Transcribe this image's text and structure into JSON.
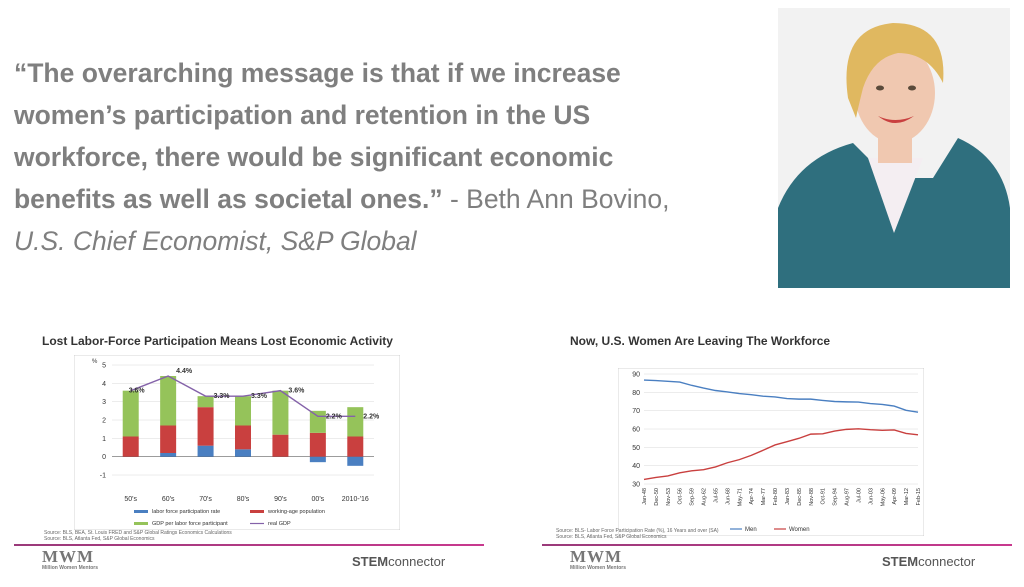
{
  "quote": {
    "bold_text": "“The overarching message is that if we increase women’s participation and retention in the US workforce, there would be significant economic benefits as well as societal ones.”",
    "attribution": " - Beth Ann Bovino, ",
    "role": "U.S. Chief Economist, S&P Global"
  },
  "photo": {
    "description": "portrait",
    "colors": {
      "background": "#f2f2f2",
      "jacket": "#2f6f7e",
      "shirt": "#f4eef2",
      "hair": "#e0b860",
      "skin": "#f0c8b0"
    }
  },
  "left_slide": {
    "title": "Lost Labor-Force Participation Means Lost Economic Activity",
    "source_lines": [
      "Source: BLS, BEA, St. Louis FRED and S&P Global Ratings Economics Calculations",
      "Source: BLS, Atlanta Fed, S&P Global Economics"
    ],
    "logo_text": "MWM",
    "logo_sub": "Million Women Mentors",
    "brand_bold": "STEM",
    "brand_rest": "connector"
  },
  "right_slide": {
    "title": "Now, U.S. Women Are Leaving The Workforce",
    "source_lines": [
      "Source: BLS- Labor Force Participation Rate (%), 16 Years and over (SA)",
      "Source: BLS, Atlanta Fed, S&P Global Economics"
    ],
    "logo_text": "MWM",
    "logo_sub": "Million Women Mentors",
    "brand_bold": "STEM",
    "brand_rest": "connector"
  },
  "chart_data": [
    {
      "type": "bar",
      "stacked": true,
      "ylabel": "%",
      "ylim": [
        -1,
        5
      ],
      "yticks": [
        "-1",
        "0",
        "1",
        "2",
        "3",
        "4",
        "5"
      ],
      "categories": [
        "50's",
        "60's",
        "70's",
        "80's",
        "90's",
        "00's",
        "2010-'16"
      ],
      "series": [
        {
          "name": "labor force participation rate",
          "color": "#4a7fc1",
          "values": [
            0.0,
            0.2,
            0.6,
            0.4,
            0.0,
            -0.3,
            -0.5
          ]
        },
        {
          "name": "working-age population",
          "color": "#c9403f",
          "values": [
            1.1,
            1.5,
            2.1,
            1.3,
            1.2,
            1.3,
            1.1
          ]
        },
        {
          "name": "GDP per labor force participant",
          "color": "#95c35a",
          "values": [
            2.5,
            2.7,
            0.6,
            1.6,
            2.4,
            1.2,
            1.6
          ]
        }
      ],
      "line": {
        "name": "real GDP",
        "color": "#8462a9",
        "values": [
          3.6,
          4.4,
          3.3,
          3.3,
          3.6,
          2.2,
          2.2
        ]
      },
      "data_labels": [
        "3.6%",
        "4.4%",
        "3.3%",
        "3.3%",
        "3.6%",
        "2.2%",
        "2.2%"
      ],
      "legend": "bottom",
      "grid": true
    },
    {
      "type": "line",
      "ylim": [
        30,
        90
      ],
      "yticks": [
        "30",
        "40",
        "50",
        "60",
        "70",
        "80",
        "90"
      ],
      "x": [
        "Jan-48",
        "Dec-50",
        "Nov-53",
        "Oct-56",
        "Sep-59",
        "Aug-62",
        "Jul-65",
        "Jun-68",
        "May-71",
        "Apr-74",
        "Mar-77",
        "Feb-80",
        "Jan-83",
        "Dec-85",
        "Nov-88",
        "Oct-91",
        "Sep-94",
        "Aug-97",
        "Jul-00",
        "Jun-03",
        "May-06",
        "Apr-09",
        "Mar-12",
        "Feb-15"
      ],
      "series": [
        {
          "name": "Men",
          "color": "#4a7fc1",
          "values": [
            86.7,
            86.4,
            86.0,
            85.6,
            83.8,
            82.3,
            81.0,
            80.2,
            79.3,
            78.7,
            77.9,
            77.5,
            76.6,
            76.3,
            76.3,
            75.6,
            75.0,
            74.8,
            74.7,
            73.9,
            73.4,
            72.5,
            70.2,
            69.2
          ]
        },
        {
          "name": "Women",
          "color": "#c9403f",
          "values": [
            32.5,
            33.6,
            34.4,
            36.1,
            37.2,
            37.8,
            39.3,
            41.6,
            43.3,
            45.6,
            48.4,
            51.3,
            53.1,
            54.9,
            57.2,
            57.4,
            58.9,
            59.8,
            60.1,
            59.6,
            59.3,
            59.5,
            57.6,
            56.8
          ]
        }
      ],
      "legend": "bottom",
      "grid": true
    }
  ]
}
